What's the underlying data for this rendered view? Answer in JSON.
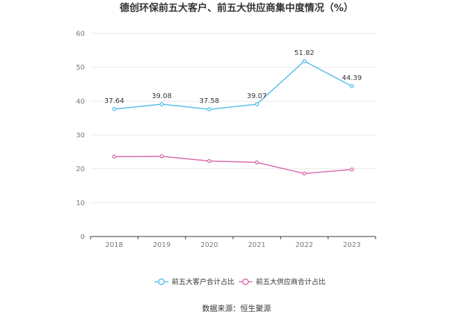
{
  "chart_data": {
    "type": "line",
    "title": "德创环保前五大客户、前五大供应商集中度情况（%）",
    "xlabel": "",
    "ylabel": "",
    "categories": [
      "2018",
      "2019",
      "2020",
      "2021",
      "2022",
      "2023"
    ],
    "ylim": [
      0,
      60
    ],
    "yticks": [
      0,
      10,
      20,
      30,
      40,
      50,
      60
    ],
    "grid": true,
    "legend_position": "bottom",
    "series": [
      {
        "name": "前五大客户合计占比",
        "values": [
          37.64,
          39.08,
          37.58,
          39.07,
          51.82,
          44.39
        ],
        "labels": [
          "37.64",
          "39.08",
          "37.58",
          "39.07",
          "51.82",
          "44.39"
        ],
        "color": "#5bc0eb"
      },
      {
        "name": "前五大供应商合计占比",
        "values": [
          23.6,
          23.7,
          22.3,
          21.9,
          18.6,
          19.8
        ],
        "labels": [],
        "color": "#d870b0"
      }
    ]
  },
  "source_text": "数据来源：恒生聚源"
}
